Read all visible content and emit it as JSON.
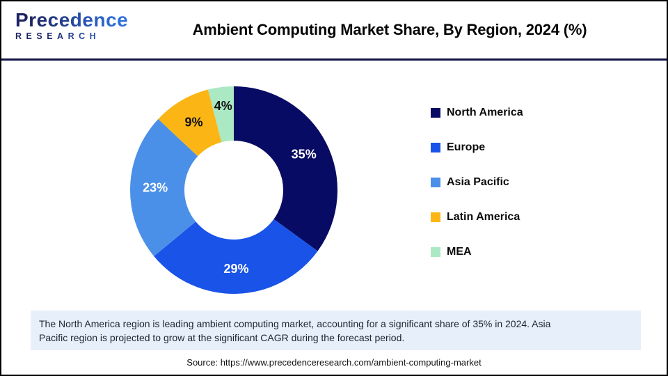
{
  "header": {
    "logo": {
      "line1": "Precedence",
      "line2": "RESEARCH"
    },
    "title": "Ambient Computing Market Share, By Region, 2024 (%)"
  },
  "chart_data": {
    "type": "pie",
    "subtype": "donut",
    "title": "Ambient Computing Market Share, By Region, 2024 (%)",
    "start_angle_deg": 0,
    "direction": "clockwise",
    "legend_position": "right",
    "slices": [
      {
        "label": "North America",
        "value": 35,
        "color": "#070B63",
        "data_label": "35%",
        "label_color": "#FFFFFF"
      },
      {
        "label": "Europe",
        "value": 29,
        "color": "#1A53E8",
        "data_label": "29%",
        "label_color": "#FFFFFF"
      },
      {
        "label": "Asia Pacific",
        "value": 23,
        "color": "#4B90E8",
        "data_label": "23%",
        "label_color": "#FFFFFF"
      },
      {
        "label": "Latin America",
        "value": 9,
        "color": "#FBB615",
        "data_label": "9%",
        "label_color": "#111111"
      },
      {
        "label": "MEA",
        "value": 4,
        "color": "#ABE8C4",
        "data_label": "4%",
        "label_color": "#111111",
        "label_radius": 122
      }
    ]
  },
  "note": {
    "text": "The North America region is leading ambient computing market, accounting for a significant share of 35% in 2024. Asia\nPacific region is projected to grow at the significant CAGR during the forecast period."
  },
  "source": {
    "text": "Source: https://www.precedenceresearch.com/ambient-computing-market"
  },
  "colors": {
    "frame_border": "#010101",
    "divider": "#0E1343",
    "note_background": "#E7EFFA"
  }
}
